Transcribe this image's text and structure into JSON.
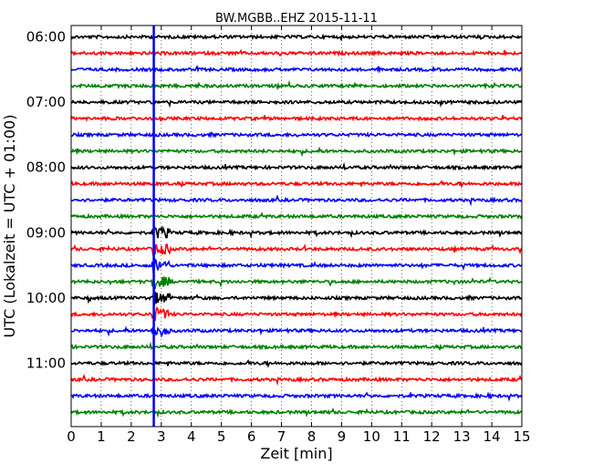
{
  "chart_data": {
    "type": "line",
    "title": "BW.MGBB..EHZ 2015-11-11",
    "xlabel": "Zeit  [min]",
    "ylabel": "UTC (Lokalzeit = UTC + 01:00)",
    "xlim": [
      0,
      15
    ],
    "x_ticks": [
      "0",
      "1",
      "2",
      "3",
      "4",
      "5",
      "6",
      "7",
      "8",
      "9",
      "10",
      "11",
      "12",
      "13",
      "14",
      "15"
    ],
    "y_ticks": [
      {
        "label": "06:00",
        "trace": 0
      },
      {
        "label": "07:00",
        "trace": 4
      },
      {
        "label": "08:00",
        "trace": 8
      },
      {
        "label": "09:00",
        "trace": 12
      },
      {
        "label": "10:00",
        "trace": 16
      },
      {
        "label": "11:00",
        "trace": 20
      }
    ],
    "trace_colors": [
      "#000000",
      "#ff0000",
      "#0000ff",
      "#008000"
    ],
    "traces": [
      {
        "start": "06:00",
        "color": "#000000"
      },
      {
        "start": "06:15",
        "color": "#ff0000"
      },
      {
        "start": "06:30",
        "color": "#0000ff"
      },
      {
        "start": "06:45",
        "color": "#008000"
      },
      {
        "start": "07:00",
        "color": "#000000"
      },
      {
        "start": "07:15",
        "color": "#ff0000"
      },
      {
        "start": "07:30",
        "color": "#0000ff"
      },
      {
        "start": "07:45",
        "color": "#008000"
      },
      {
        "start": "08:00",
        "color": "#000000"
      },
      {
        "start": "08:15",
        "color": "#ff0000"
      },
      {
        "start": "08:30",
        "color": "#0000ff"
      },
      {
        "start": "08:45",
        "color": "#008000"
      },
      {
        "start": "09:00",
        "color": "#000000"
      },
      {
        "start": "09:15",
        "color": "#ff0000"
      },
      {
        "start": "09:30",
        "color": "#0000ff"
      },
      {
        "start": "09:45",
        "color": "#008000"
      },
      {
        "start": "10:00",
        "color": "#000000"
      },
      {
        "start": "10:15",
        "color": "#ff0000"
      },
      {
        "start": "10:30",
        "color": "#0000ff"
      },
      {
        "start": "10:45",
        "color": "#008000"
      },
      {
        "start": "11:00",
        "color": "#000000"
      },
      {
        "start": "11:15",
        "color": "#ff0000"
      },
      {
        "start": "11:30",
        "color": "#0000ff"
      },
      {
        "start": "11:45",
        "color": "#008000"
      }
    ],
    "marker_line": {
      "x": 2.75,
      "color": "#0000ff"
    },
    "grid": true,
    "grid_style": "dotted vertical"
  }
}
